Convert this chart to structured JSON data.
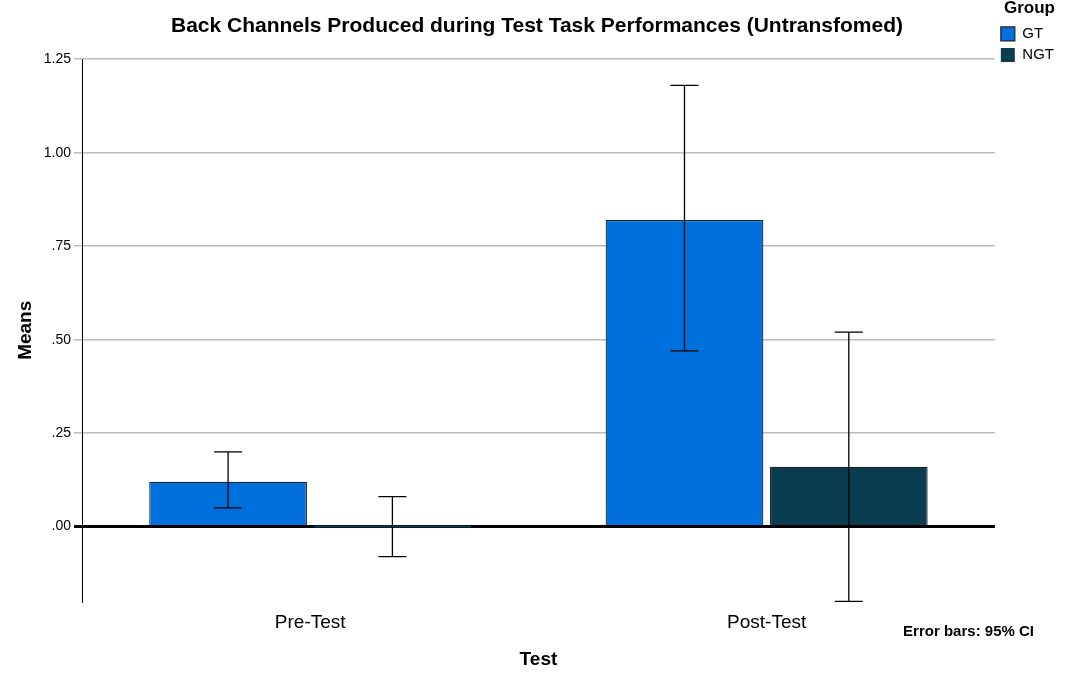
{
  "chart_data": {
    "type": "bar",
    "title": "Back Channels Produced during Test Task Performances (Untransfomed)",
    "xlabel": "Test",
    "ylabel": "Means",
    "legend_title": "Group",
    "legend": "top right",
    "categories": [
      "Pre-Test",
      "Post-Test"
    ],
    "series": [
      {
        "name": "GT",
        "color": "#0070dd",
        "values": [
          0.12,
          0.82
        ],
        "errors": [
          [
            0.05,
            0.2
          ],
          [
            0.47,
            1.18
          ]
        ]
      },
      {
        "name": "NGT",
        "color": "#0a3d4f",
        "values": [
          0,
          0.16
        ],
        "errors": [
          [
            -0.08,
            0.08
          ],
          [
            -0.2,
            0.52
          ]
        ]
      }
    ],
    "ylim": [
      -0.2,
      1.25
    ],
    "yticks": [
      {
        "value": 0,
        "label": ".00"
      },
      {
        "value": 0.25,
        "label": ".25"
      },
      {
        "value": 0.5,
        "label": ".50"
      },
      {
        "value": 0.75,
        "label": ".75"
      },
      {
        "value": 1,
        "label": "1.00"
      },
      {
        "value": 1.25,
        "label": "1.25"
      }
    ],
    "grid": "y",
    "annotations": [
      "Error bars: 95% CI"
    ]
  }
}
